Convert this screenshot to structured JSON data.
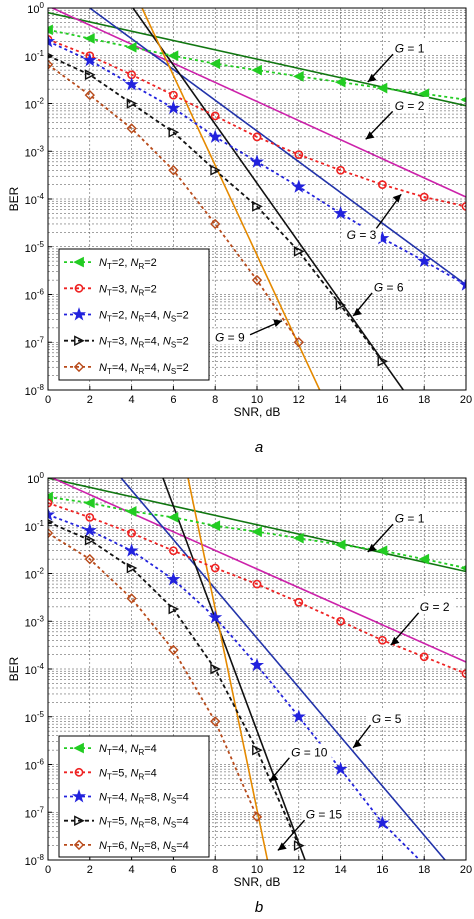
{
  "chart_data": [
    {
      "type": "line",
      "panel_label": "a",
      "xlabel": "SNR, dB",
      "ylabel": "BER",
      "xlim": [
        0,
        20
      ],
      "ylim_log10": [
        -8,
        0
      ],
      "y_scale": "log",
      "x_ticks": [
        "0",
        "2",
        "4",
        "6",
        "8",
        "10",
        "12",
        "14",
        "16",
        "18",
        "20"
      ],
      "y_ticks": [
        "10^0",
        "10^-1",
        "10^-2",
        "10^-3",
        "10^-4",
        "10^-5",
        "10^-6",
        "10^-7",
        "10^-8"
      ],
      "grid": true,
      "legend_position": "lower-left",
      "series": [
        {
          "label_main": "N",
          "sub1": "T",
          "v1": "=2, ",
          "sub2": "R",
          "v2": "=2",
          "sub3": "",
          "v3": "",
          "color": "#22cc22",
          "marker": "triangle-left",
          "dash": "3,3",
          "x": [
            0,
            2,
            4,
            6,
            8,
            10,
            12,
            14,
            16,
            18,
            20
          ],
          "y": [
            0.35,
            0.23,
            0.15,
            0.1,
            0.068,
            0.05,
            0.037,
            0.028,
            0.021,
            0.016,
            0.012
          ]
        },
        {
          "label_main": "N",
          "sub1": "T",
          "v1": "=3, ",
          "sub2": "R",
          "v2": "=2",
          "sub3": "",
          "v3": "",
          "color": "#ee2222",
          "marker": "circle",
          "dash": "3,3",
          "x": [
            0,
            2,
            4,
            6,
            8,
            10,
            12,
            14,
            16,
            18,
            20
          ],
          "y": [
            0.22,
            0.1,
            0.04,
            0.015,
            0.0055,
            0.002,
            0.00085,
            0.0004,
            0.0002,
            0.00011,
            7e-05
          ]
        },
        {
          "label_main": "N",
          "sub1": "T",
          "v1": "=2, ",
          "sub2": "R",
          "v2": "=4, ",
          "sub3": "S",
          "v3": "=2",
          "color": "#2222dd",
          "marker": "star",
          "dash": "3,3",
          "x": [
            0,
            2,
            4,
            6,
            8,
            10,
            12,
            14,
            16,
            18,
            20
          ],
          "y": [
            0.2,
            0.08,
            0.025,
            0.008,
            0.002,
            0.0006,
            0.00018,
            5e-05,
            1.5e-05,
            5e-06,
            1.6e-06
          ]
        },
        {
          "label_main": "N",
          "sub1": "T",
          "v1": "=3, ",
          "sub2": "R",
          "v2": "=4, ",
          "sub3": "S",
          "v3": "=2",
          "color": "#111111",
          "marker": "triangle-right",
          "dash": "4,3",
          "x": [
            0,
            2,
            4,
            6,
            8,
            10,
            12,
            14,
            16
          ],
          "y": [
            0.1,
            0.04,
            0.01,
            0.0025,
            0.0004,
            7e-05,
            8e-06,
            6e-07,
            4e-08
          ]
        },
        {
          "label_main": "N",
          "sub1": "T",
          "v1": "=4, ",
          "sub2": "R",
          "v2": "=4, ",
          "sub3": "S",
          "v3": "=2",
          "color": "#b84a1a",
          "marker": "diamond",
          "dash": "3,3",
          "x": [
            0,
            2,
            4,
            6,
            8,
            10,
            12
          ],
          "y": [
            0.065,
            0.015,
            0.003,
            0.0004,
            3e-05,
            2e-06,
            1e-07
          ]
        }
      ],
      "asymptotes": [
        {
          "color": "#117711",
          "x": [
            0,
            20
          ],
          "y": [
            0.8,
            0.009
          ]
        },
        {
          "color": "#cc22aa",
          "x": [
            0,
            20
          ],
          "y": [
            1.1,
            0.00011
          ]
        },
        {
          "color": "#2233aa",
          "x": [
            2,
            20
          ],
          "y": [
            1.0,
            1.6e-06
          ]
        },
        {
          "color": "#111111",
          "x": [
            4,
            17
          ],
          "y": [
            1.1,
            1e-08
          ]
        },
        {
          "color": "#e58a00",
          "x": [
            4.5,
            13
          ],
          "y": [
            1.0,
            1e-08
          ]
        }
      ],
      "annotations": [
        {
          "text": "G = 1",
          "tx": 17.3,
          "ty": -0.85,
          "ax": 15.3,
          "ay": -1.55
        },
        {
          "text": "G = 2",
          "tx": 17.3,
          "ty": -2.05,
          "ax": 15.2,
          "ay": -2.75
        },
        {
          "text": "G = 3",
          "tx": 15.0,
          "ty": -4.75,
          "ax": 16.9,
          "ay": -3.9
        },
        {
          "text": "G = 6",
          "tx": 16.3,
          "ty": -5.85,
          "ax": 14.6,
          "ay": -6.45
        },
        {
          "text": "G = 9",
          "tx": 8.7,
          "ty": -6.9,
          "ax": 11.2,
          "ay": -6.55
        }
      ]
    },
    {
      "type": "line",
      "panel_label": "b",
      "xlabel": "SNR, dB",
      "ylabel": "BER",
      "xlim": [
        0,
        20
      ],
      "ylim_log10": [
        -8,
        0
      ],
      "y_scale": "log",
      "x_ticks": [
        "0",
        "2",
        "4",
        "6",
        "8",
        "10",
        "12",
        "14",
        "16",
        "18",
        "20"
      ],
      "y_ticks": [
        "10^0",
        "10^-1",
        "10^-2",
        "10^-3",
        "10^-4",
        "10^-5",
        "10^-6",
        "10^-7",
        "10^-8"
      ],
      "grid": true,
      "legend_position": "lower-left",
      "series": [
        {
          "label_main": "N",
          "sub1": "T",
          "v1": "=4, ",
          "sub2": "R",
          "v2": "=4",
          "sub3": "",
          "v3": "",
          "color": "#22cc22",
          "marker": "triangle-left",
          "dash": "3,3",
          "x": [
            0,
            2,
            4,
            6,
            8,
            10,
            12,
            14,
            16,
            18,
            20
          ],
          "y": [
            0.4,
            0.3,
            0.2,
            0.15,
            0.1,
            0.075,
            0.055,
            0.04,
            0.03,
            0.02,
            0.013
          ]
        },
        {
          "label_main": "N",
          "sub1": "T",
          "v1": "=5, ",
          "sub2": "R",
          "v2": "=4",
          "sub3": "",
          "v3": "",
          "color": "#ee2222",
          "marker": "circle",
          "dash": "3,3",
          "x": [
            0,
            2,
            4,
            6,
            8,
            10,
            12,
            14,
            16,
            18,
            20
          ],
          "y": [
            0.3,
            0.15,
            0.07,
            0.03,
            0.013,
            0.006,
            0.0025,
            0.001,
            0.0004,
            0.00018,
            8e-05
          ]
        },
        {
          "label_main": "N",
          "sub1": "T",
          "v1": "=4, ",
          "sub2": "R",
          "v2": "=8, ",
          "sub3": "S",
          "v3": "=4",
          "color": "#2222dd",
          "marker": "star",
          "dash": "3,3",
          "x": [
            0,
            2,
            4,
            6,
            8,
            10,
            12,
            14,
            16,
            18
          ],
          "y": [
            0.17,
            0.08,
            0.03,
            0.0075,
            0.0012,
            0.00012,
            1e-05,
            8e-07,
            6e-08,
            8e-09
          ]
        },
        {
          "label_main": "N",
          "sub1": "T",
          "v1": "=5, ",
          "sub2": "R",
          "v2": "=8, ",
          "sub3": "S",
          "v3": "=4",
          "color": "#111111",
          "marker": "triangle-right",
          "dash": "4,3",
          "x": [
            0,
            2,
            4,
            6,
            8,
            10,
            12
          ],
          "y": [
            0.12,
            0.05,
            0.013,
            0.0018,
            0.0001,
            2e-06,
            2e-08
          ]
        },
        {
          "label_main": "N",
          "sub1": "T",
          "v1": "=6, ",
          "sub2": "R",
          "v2": "=8, ",
          "sub3": "S",
          "v3": "=4",
          "color": "#b84a1a",
          "marker": "diamond",
          "dash": "3,3",
          "x": [
            0,
            2,
            4,
            6,
            8,
            10
          ],
          "y": [
            0.07,
            0.02,
            0.003,
            0.00025,
            8e-06,
            8e-08
          ]
        }
      ],
      "asymptotes": [
        {
          "color": "#117711",
          "x": [
            0,
            20
          ],
          "y": [
            1.0,
            0.011
          ]
        },
        {
          "color": "#cc22aa",
          "x": [
            0,
            20
          ],
          "y": [
            1.1,
            0.00014
          ]
        },
        {
          "color": "#2233aa",
          "x": [
            3.5,
            19
          ],
          "y": [
            1.0,
            1e-08
          ]
        },
        {
          "color": "#111111",
          "x": [
            5.5,
            12.3
          ],
          "y": [
            1.0,
            1e-08
          ]
        },
        {
          "color": "#e58a00",
          "x": [
            6.7,
            10.5
          ],
          "y": [
            1.0,
            1e-08
          ]
        }
      ],
      "annotations": [
        {
          "text": "G = 1",
          "tx": 17.3,
          "ty": -0.85,
          "ax": 15.3,
          "ay": -1.55
        },
        {
          "text": "G = 2",
          "tx": 18.5,
          "ty": -2.7,
          "ax": 16.4,
          "ay": -3.5
        },
        {
          "text": "G = 5",
          "tx": 16.2,
          "ty": -5.05,
          "ax": 14.6,
          "ay": -5.65
        },
        {
          "text": "G = 10",
          "tx": 12.5,
          "ty": -5.75,
          "ax": 10.6,
          "ay": -6.35
        },
        {
          "text": "G = 15",
          "tx": 13.2,
          "ty": -7.05,
          "ax": 11.0,
          "ay": -7.8
        }
      ]
    }
  ]
}
